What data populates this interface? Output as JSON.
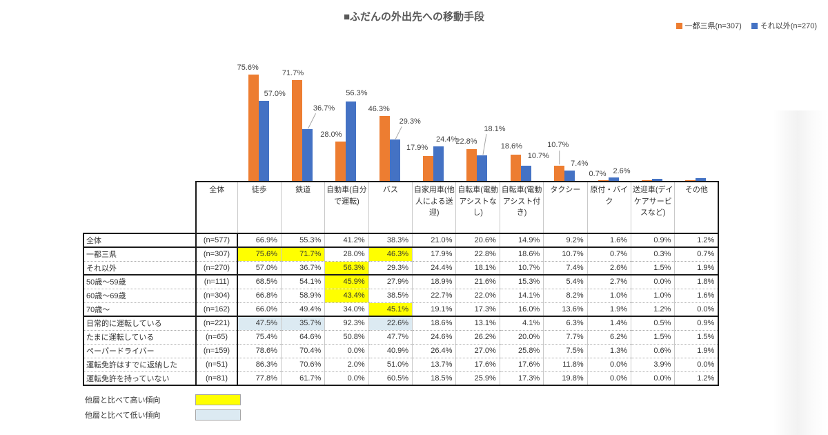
{
  "title": "■ふだんの外出先への移動手段",
  "chart_legend": [
    {
      "label": "一都三県(n=307)",
      "color": "#ED7D31"
    },
    {
      "label": "それ以外(n=270)",
      "color": "#4472C4"
    }
  ],
  "chart_data": {
    "type": "bar",
    "title": "■ふだんの外出先への移動手段",
    "categories": [
      "徒歩",
      "鉄道",
      "自動車(自分で運転)",
      "バス",
      "自家用車(他人による送迎)",
      "自転車(電動アシストなし)",
      "自転車(電動アシスト付き)",
      "タクシー",
      "原付・バイク",
      "送迎車(デイケアサービスなど)",
      "その他"
    ],
    "series": [
      {
        "name": "一都三県(n=307)",
        "color": "#ED7D31",
        "values": [
          75.6,
          71.7,
          28.0,
          46.3,
          17.9,
          22.8,
          18.6,
          10.7,
          0.7,
          0.3,
          0.7
        ]
      },
      {
        "name": "それ以外(n=270)",
        "color": "#4472C4",
        "values": [
          57.0,
          36.7,
          56.3,
          29.3,
          24.4,
          18.1,
          10.7,
          7.4,
          2.6,
          1.5,
          1.9
        ]
      }
    ],
    "xlabel": "",
    "ylabel": "",
    "ylim": [
      0,
      80
    ],
    "grid": false,
    "legend_position": "top-right",
    "value_label_format": "0.0%",
    "value_labels_visible_categories": 9
  },
  "table": {
    "corner_header": "全体",
    "columns": [
      "徒歩",
      "鉄道",
      "自動車(自分で運転)",
      "バス",
      "自家用車(他人による送迎)",
      "自転車(電動アシストなし)",
      "自転車(電動アシスト付き)",
      "タクシー",
      "原付・バイク",
      "送迎車(デイケアサービスなど)",
      "その他"
    ],
    "highlight_colors": {
      "high": "#FFFF00",
      "low": "#DCEAF2"
    },
    "rows": [
      {
        "label": "全体",
        "n": "(n=577)",
        "values": [
          66.9,
          55.3,
          41.2,
          38.3,
          21.0,
          20.6,
          14.9,
          9.2,
          1.6,
          0.9,
          1.2
        ],
        "highlights": {},
        "group_end": true
      },
      {
        "label": "一都三県",
        "n": "(n=307)",
        "values": [
          75.6,
          71.7,
          28.0,
          46.3,
          17.9,
          22.8,
          18.6,
          10.7,
          0.7,
          0.3,
          0.7
        ],
        "highlights": {
          "0": "high",
          "1": "high",
          "3": "high"
        },
        "group_end": false
      },
      {
        "label": "それ以外",
        "n": "(n=270)",
        "values": [
          57.0,
          36.7,
          56.3,
          29.3,
          24.4,
          18.1,
          10.7,
          7.4,
          2.6,
          1.5,
          1.9
        ],
        "highlights": {
          "2": "high"
        },
        "group_end": true
      },
      {
        "label": "50歳〜59歳",
        "n": "(n=111)",
        "values": [
          68.5,
          54.1,
          45.9,
          27.9,
          18.9,
          21.6,
          15.3,
          5.4,
          2.7,
          0.0,
          1.8
        ],
        "highlights": {
          "2": "high"
        },
        "group_end": false
      },
      {
        "label": "60歳〜69歳",
        "n": "(n=304)",
        "values": [
          66.8,
          58.9,
          43.4,
          38.5,
          22.7,
          22.0,
          14.1,
          8.2,
          1.0,
          1.0,
          1.6
        ],
        "highlights": {
          "2": "high"
        },
        "group_end": false
      },
      {
        "label": "70歳〜",
        "n": "(n=162)",
        "values": [
          66.0,
          49.4,
          34.0,
          45.1,
          19.1,
          17.3,
          16.0,
          13.6,
          1.9,
          1.2,
          0.0
        ],
        "highlights": {
          "3": "high"
        },
        "group_end": true
      },
      {
        "label": "日常的に運転している",
        "n": "(n=221)",
        "values": [
          47.5,
          35.7,
          92.3,
          22.6,
          18.6,
          13.1,
          4.1,
          6.3,
          1.4,
          0.5,
          0.9
        ],
        "highlights": {
          "0": "low",
          "1": "low",
          "3": "low"
        },
        "group_end": false
      },
      {
        "label": "たまに運転している",
        "n": "(n=65)",
        "values": [
          75.4,
          64.6,
          50.8,
          47.7,
          24.6,
          26.2,
          20.0,
          7.7,
          6.2,
          1.5,
          1.5
        ],
        "highlights": {},
        "group_end": false
      },
      {
        "label": "ペーパードライバー",
        "n": "(n=159)",
        "values": [
          78.6,
          70.4,
          0.0,
          40.9,
          26.4,
          27.0,
          25.8,
          7.5,
          1.3,
          0.6,
          1.9
        ],
        "highlights": {},
        "group_end": false
      },
      {
        "label": "運転免許はすでに返納した",
        "n": "(n=51)",
        "values": [
          86.3,
          70.6,
          2.0,
          51.0,
          13.7,
          17.6,
          17.6,
          11.8,
          0.0,
          3.9,
          0.0
        ],
        "highlights": {},
        "group_end": false
      },
      {
        "label": "運転免許を持っていない",
        "n": "(n=81)",
        "values": [
          77.8,
          61.7,
          0.0,
          60.5,
          18.5,
          25.9,
          17.3,
          19.8,
          0.0,
          0.0,
          1.2
        ],
        "highlights": {},
        "group_end": true
      }
    ]
  },
  "notes": [
    {
      "label": "他層と比べて高い傾向",
      "color": "#FFFF00"
    },
    {
      "label": "他層と比べて低い傾向",
      "color": "#DCEAF2"
    }
  ]
}
